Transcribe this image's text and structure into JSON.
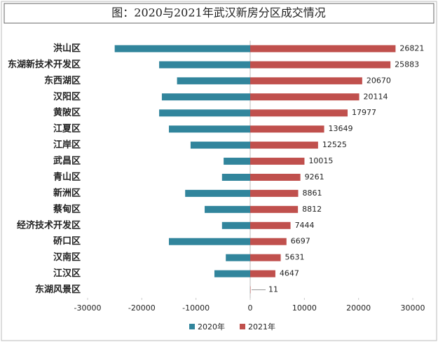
{
  "chart_data": {
    "type": "bar",
    "orientation": "horizontal",
    "title": "图：2020与2021年武汉新房分区成交情况",
    "categories": [
      "洪山区",
      "东湖新技术开发区",
      "东西湖区",
      "汉阳区",
      "黄陂区",
      "江夏区",
      "江岸区",
      "武昌区",
      "青山区",
      "新洲区",
      "蔡甸区",
      "经济技术开发区",
      "硚口区",
      "汉南区",
      "江汉区",
      "东湖风景区"
    ],
    "series": [
      {
        "name": "2020年",
        "color": "#31859c",
        "values": [
          -25000,
          -16800,
          -13500,
          -16300,
          -16800,
          -15000,
          -11000,
          -4900,
          -5200,
          -12000,
          -8400,
          -5200,
          -15000,
          -4500,
          -6600,
          -10
        ]
      },
      {
        "name": "2021年",
        "color": "#c0504d",
        "values": [
          26821,
          25883,
          20670,
          20114,
          17977,
          13649,
          12525,
          10015,
          9261,
          8861,
          8812,
          7444,
          6697,
          5631,
          4647,
          11
        ],
        "data_labels": true
      }
    ],
    "xlim": [
      -30000,
      30000
    ],
    "xticks": [
      -30000,
      -20000,
      -10000,
      0,
      10000,
      20000,
      30000
    ],
    "grid": false,
    "legend": "bottom"
  }
}
